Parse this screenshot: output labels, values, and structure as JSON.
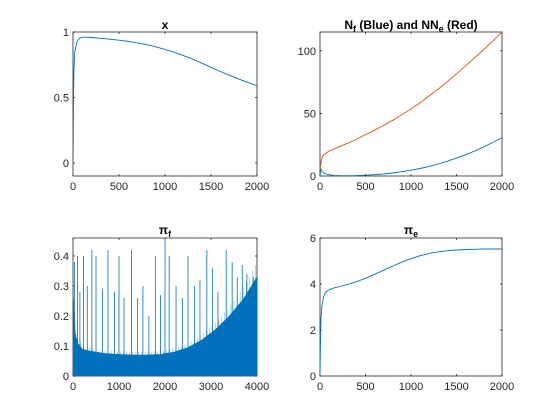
{
  "chart_data": [
    {
      "type": "line",
      "title": "x",
      "xlim": [
        0,
        2000
      ],
      "ylim": [
        -0.1,
        1
      ],
      "xticks": [
        0,
        500,
        1000,
        1500,
        2000
      ],
      "yticks": [
        0,
        0.5,
        1
      ],
      "xtick_labels": [
        "0",
        "500",
        "1000",
        "1500",
        "2000"
      ],
      "ytick_labels": [
        "0",
        "0.5",
        "1"
      ],
      "grid": false,
      "series": [
        {
          "color": "#0072BD",
          "x": [
            0,
            5,
            10,
            20,
            40,
            60,
            80,
            100,
            150,
            200,
            300,
            400,
            500,
            600,
            700,
            800,
            900,
            1000,
            1100,
            1200,
            1300,
            1400,
            1500,
            1600,
            1700,
            1800,
            1900,
            2000
          ],
          "y": [
            -0.05,
            0.45,
            0.7,
            0.85,
            0.92,
            0.945,
            0.955,
            0.96,
            0.96,
            0.958,
            0.952,
            0.945,
            0.937,
            0.928,
            0.917,
            0.903,
            0.887,
            0.867,
            0.845,
            0.82,
            0.792,
            0.762,
            0.73,
            0.698,
            0.67,
            0.642,
            0.615,
            0.59
          ]
        }
      ]
    },
    {
      "type": "line",
      "title_parts": [
        "N",
        "f",
        " (Blue) and N",
        "e",
        " (Red)"
      ],
      "xlim": [
        0,
        2000
      ],
      "ylim": [
        0,
        115
      ],
      "xticks": [
        0,
        500,
        1000,
        1500,
        2000
      ],
      "yticks": [
        0,
        50,
        100
      ],
      "xtick_labels": [
        "0",
        "500",
        "1000",
        "1500",
        "2000"
      ],
      "ytick_labels": [
        "0",
        "50",
        "100"
      ],
      "grid": false,
      "series": [
        {
          "color": "#D95319",
          "x": [
            0,
            5,
            15,
            30,
            60,
            100,
            200,
            300,
            400,
            500,
            600,
            700,
            800,
            900,
            1000,
            1100,
            1200,
            1300,
            1400,
            1500,
            1600,
            1700,
            1800,
            1900,
            2000
          ],
          "y": [
            0,
            8,
            13,
            16,
            18,
            20,
            23,
            26,
            29.5,
            33,
            36.5,
            40.5,
            44.5,
            49,
            53.5,
            58.5,
            64,
            69.5,
            75.5,
            81.5,
            88,
            94.5,
            101,
            108,
            115
          ]
        },
        {
          "color": "#0072BD",
          "x": [
            0,
            10,
            20,
            40,
            80,
            150,
            200,
            300,
            400,
            500,
            600,
            700,
            800,
            900,
            1000,
            1100,
            1200,
            1300,
            1400,
            1500,
            1600,
            1700,
            1800,
            1900,
            2000
          ],
          "y": [
            0,
            6,
            4,
            2.5,
            1.2,
            0.5,
            0.3,
            0.2,
            0.3,
            0.6,
            1.0,
            1.6,
            2.4,
            3.4,
            4.6,
            6.0,
            7.7,
            9.6,
            11.8,
            14.3,
            17.0,
            20.0,
            23.3,
            26.8,
            30.5
          ]
        }
      ]
    },
    {
      "type": "line",
      "title_parts": [
        "π",
        "f",
        ""
      ],
      "xlim": [
        0,
        4000
      ],
      "ylim": [
        0,
        0.46
      ],
      "xticks": [
        0,
        1000,
        2000,
        3000,
        4000
      ],
      "yticks": [
        0,
        0.1,
        0.2,
        0.3,
        0.4
      ],
      "xtick_labels": [
        "0",
        "1000",
        "2000",
        "3000",
        "4000"
      ],
      "ytick_labels": [
        "0",
        "0.1",
        "0.2",
        "0.3",
        "0.4"
      ],
      "grid": false,
      "envelope": {
        "color": "#0072BD",
        "x": [
          0,
          50,
          100,
          200,
          300,
          500,
          700,
          1000,
          1300,
          1600,
          1900,
          2200,
          2500,
          2800,
          3100,
          3400,
          3700,
          4000
        ],
        "y": [
          0.28,
          0.14,
          0.11,
          0.09,
          0.085,
          0.08,
          0.075,
          0.072,
          0.07,
          0.07,
          0.072,
          0.08,
          0.095,
          0.12,
          0.155,
          0.2,
          0.255,
          0.33
        ]
      },
      "spikes": {
        "color": "#0072BD",
        "x": [
          30,
          100,
          150,
          230,
          310,
          410,
          500,
          640,
          760,
          900,
          1000,
          1110,
          1270,
          1400,
          1520,
          1650,
          1790,
          1900,
          2000,
          2090,
          2240,
          2380,
          2500,
          2640,
          2760,
          2910,
          3030,
          3150,
          3330,
          3460,
          3570,
          3680,
          3780,
          3920
        ],
        "y": [
          0.38,
          0.4,
          0.28,
          0.4,
          0.3,
          0.42,
          0.4,
          0.29,
          0.42,
          0.28,
          0.4,
          0.26,
          0.42,
          0.26,
          0.3,
          0.2,
          0.4,
          0.27,
          0.46,
          0.4,
          0.3,
          0.26,
          0.4,
          0.3,
          0.32,
          0.42,
          0.36,
          0.28,
          0.42,
          0.38,
          0.33,
          0.37,
          0.34,
          0.33
        ]
      }
    },
    {
      "type": "line",
      "title_parts": [
        "π",
        "e",
        ""
      ],
      "xlim": [
        0,
        2000
      ],
      "ylim": [
        0,
        6
      ],
      "xticks": [
        0,
        500,
        1000,
        1500,
        2000
      ],
      "yticks": [
        0,
        2,
        4,
        6
      ],
      "xtick_labels": [
        "0",
        "500",
        "1000",
        "1500",
        "2000"
      ],
      "ytick_labels": [
        "0",
        "2",
        "4",
        "6"
      ],
      "grid": false,
      "series": [
        {
          "color": "#0072BD",
          "x": [
            0,
            5,
            10,
            20,
            40,
            60,
            80,
            100,
            150,
            200,
            300,
            400,
            500,
            600,
            700,
            800,
            900,
            1000,
            1100,
            1200,
            1300,
            1400,
            1500,
            1600,
            1700,
            1800,
            1900,
            2000
          ],
          "y": [
            0,
            1.5,
            2.4,
            3.0,
            3.45,
            3.62,
            3.7,
            3.75,
            3.82,
            3.87,
            3.98,
            4.1,
            4.25,
            4.42,
            4.6,
            4.78,
            4.95,
            5.1,
            5.23,
            5.33,
            5.4,
            5.45,
            5.48,
            5.5,
            5.51,
            5.52,
            5.52,
            5.52
          ]
        }
      ]
    }
  ]
}
